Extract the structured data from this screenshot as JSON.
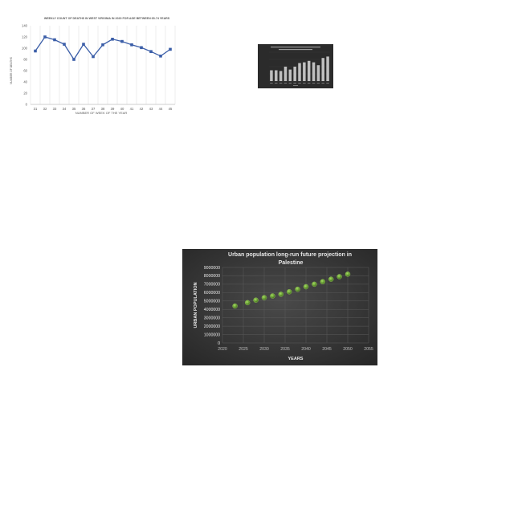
{
  "chart_data": [
    {
      "type": "line",
      "title": "WEEKLY COUNT OF DEATHS IN WEST VIRGINIA IN 2020 FOR AGE BETWEEN 65-74 YEARS",
      "xlabel": "NUMBER OF WEEK OF THE YEAR",
      "ylabel": "NUMBER OF DEATHS",
      "categories": [
        "31",
        "32",
        "33",
        "34",
        "35",
        "36",
        "37",
        "38",
        "39",
        "40",
        "41",
        "42",
        "43",
        "44",
        "45"
      ],
      "values": [
        95,
        120,
        115,
        107,
        80,
        107,
        85,
        106,
        116,
        112,
        106,
        101,
        94,
        86,
        98
      ],
      "ylim": [
        0,
        140
      ],
      "yticks": [
        "0",
        "20",
        "40",
        "60",
        "80",
        "100",
        "120",
        "140"
      ],
      "grid": "vertical",
      "colors": {
        "line": "#3b5ea8",
        "grid": "#d9d9d9",
        "text": "#595959"
      }
    },
    {
      "type": "bar",
      "title": "",
      "xlabel": "",
      "ylabel": "",
      "values": [
        1.5,
        1.5,
        1.4,
        2.0,
        1.6,
        2.0,
        2.5,
        2.6,
        2.8,
        2.6,
        2.2,
        3.2,
        3.4
      ],
      "ylim": [
        0,
        4
      ],
      "colors": {
        "background": "#2b2b2b",
        "bar": "#bfbfbf"
      }
    },
    {
      "type": "scatter",
      "title": "Urban population long-run future projection in Palestine",
      "xlabel": "YEARS",
      "ylabel": "URBAN POPULATION",
      "xticks": [
        "2020",
        "2025",
        "2030",
        "2035",
        "2040",
        "2045",
        "2050",
        "2055"
      ],
      "yticks": [
        "0",
        "1000000",
        "2000000",
        "3000000",
        "4000000",
        "5000000",
        "6000000",
        "7000000",
        "8000000",
        "9000000"
      ],
      "xlim": [
        2020,
        2055
      ],
      "ylim": [
        0,
        9000000
      ],
      "x": [
        2023,
        2026,
        2028,
        2030,
        2032,
        2034,
        2036,
        2038,
        2040,
        2042,
        2044,
        2046,
        2048,
        2050
      ],
      "y": [
        4400000,
        4800000,
        5100000,
        5400000,
        5600000,
        5800000,
        6100000,
        6400000,
        6700000,
        7000000,
        7300000,
        7600000,
        7900000,
        8200000
      ],
      "grid": "both",
      "colors": {
        "background": "#3a3a3a",
        "point": "#5a8a2a",
        "point_edge": "#9fd05a",
        "grid": "#5a5a5a",
        "text": "#e8e8e8"
      }
    }
  ]
}
